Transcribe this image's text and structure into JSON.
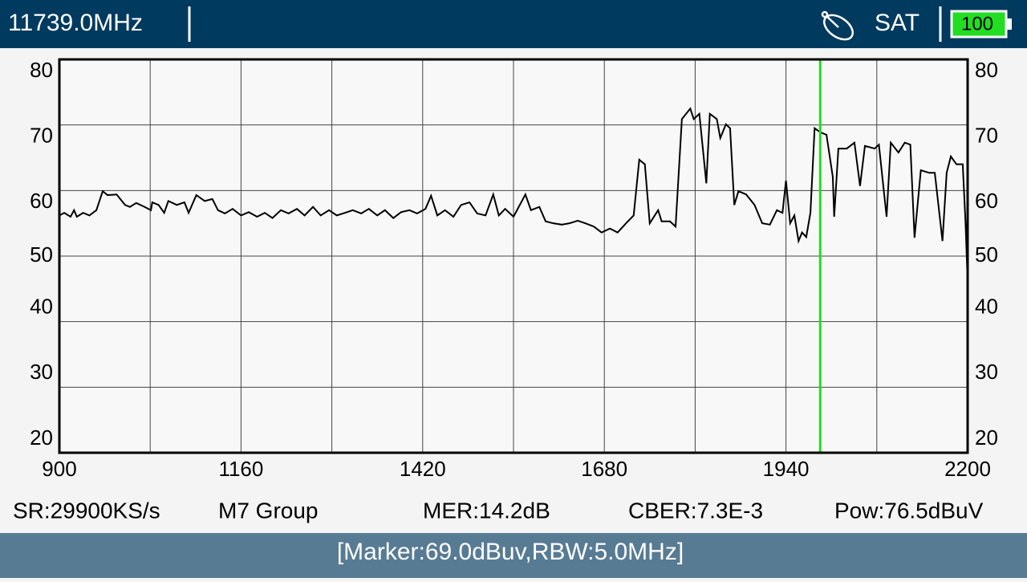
{
  "header": {
    "frequency": "11739.0MHz",
    "mode": "SAT",
    "battery": "100"
  },
  "chart_data": {
    "type": "line",
    "xlim": [
      900,
      2200
    ],
    "xticks": [
      900,
      1160,
      1420,
      1680,
      1940,
      2200
    ],
    "x_minor_ticks": [
      1030,
      1290,
      1550,
      1810,
      2070
    ],
    "ylim": [
      20,
      80
    ],
    "yticks": [
      20,
      30,
      40,
      50,
      60,
      70,
      80
    ],
    "grid": true,
    "marker": {
      "x": 1989,
      "color": "#22dd22"
    },
    "series": [
      {
        "color": "#000000",
        "x": [
          900,
          907,
          916,
          921,
          925,
          934,
          943,
          953,
          962,
          969,
          982,
          994,
          1001,
          1010,
          1022,
          1031,
          1033,
          1042,
          1050,
          1056,
          1068,
          1079,
          1085,
          1096,
          1108,
          1119,
          1127,
          1137,
          1148,
          1160,
          1171,
          1183,
          1194,
          1205,
          1217,
          1228,
          1240,
          1251,
          1263,
          1274,
          1286,
          1297,
          1309,
          1320,
          1332,
          1343,
          1355,
          1366,
          1378,
          1389,
          1401,
          1412,
          1424,
          1432,
          1441,
          1452,
          1464,
          1475,
          1487,
          1498,
          1510,
          1521,
          1529,
          1538,
          1550,
          1561,
          1567,
          1575,
          1587,
          1596,
          1607,
          1619,
          1630,
          1642,
          1653,
          1665,
          1676,
          1688,
          1699,
          1711,
          1722,
          1730,
          1738,
          1745,
          1757,
          1762,
          1774,
          1782,
          1791,
          1803,
          1808,
          1816,
          1826,
          1831,
          1841,
          1846,
          1854,
          1860,
          1866,
          1872,
          1883,
          1895,
          1906,
          1917,
          1927,
          1935,
          1940,
          1946,
          1952,
          1958,
          1963,
          1969,
          1975,
          1981,
          1989,
          1998,
          2007,
          2009,
          2015,
          2027,
          2038,
          2046,
          2053,
          2067,
          2073,
          2084,
          2090,
          2101,
          2110,
          2118,
          2124,
          2133,
          2145,
          2153,
          2164,
          2170,
          2176,
          2184,
          2193,
          2197,
          2200
        ],
        "values": [
          56.2,
          56.6,
          56.0,
          57.0,
          56.0,
          56.6,
          56.2,
          57.0,
          59.9,
          59.3,
          59.4,
          57.8,
          57.5,
          58.1,
          57.5,
          57.0,
          58.2,
          57.8,
          56.6,
          58.4,
          57.8,
          58.2,
          56.6,
          59.3,
          58.4,
          58.7,
          57.0,
          56.5,
          57.2,
          56.2,
          56.7,
          56.0,
          56.6,
          55.8,
          57.0,
          56.5,
          57.2,
          56.2,
          57.5,
          56.2,
          57.0,
          56.2,
          56.6,
          57.0,
          56.5,
          57.2,
          56.2,
          57.0,
          55.8,
          56.7,
          57.0,
          56.5,
          57.2,
          59.2,
          56.2,
          57.0,
          56.0,
          57.8,
          58.2,
          56.5,
          56.2,
          59.4,
          56.2,
          57.2,
          56.0,
          58.2,
          59.4,
          57.0,
          57.5,
          55.3,
          55.0,
          54.8,
          55.0,
          55.4,
          55.0,
          54.5,
          53.6,
          54.2,
          53.6,
          55.0,
          56.2,
          64.7,
          64.0,
          55.0,
          57.0,
          55.3,
          55.3,
          54.5,
          70.9,
          72.5,
          70.9,
          71.7,
          61.1,
          71.7,
          70.9,
          68.0,
          70.1,
          69.5,
          57.8,
          59.9,
          59.4,
          57.8,
          55.0,
          54.8,
          57.0,
          56.6,
          61.5,
          55.0,
          56.2,
          52.3,
          53.6,
          52.9,
          56.6,
          69.5,
          68.9,
          68.5,
          62.1,
          56.0,
          66.4,
          66.4,
          67.3,
          60.7,
          66.8,
          66.4,
          67.0,
          56.0,
          67.3,
          65.8,
          67.3,
          67.0,
          52.8,
          63.1,
          62.7,
          62.7,
          52.3,
          62.7,
          65.2,
          64.0,
          64.0,
          55.0,
          46.2
        ]
      }
    ]
  },
  "info": [
    "SR:29900KS/s",
    "M7 Group",
    "MER:14.2dB",
    "CBER:7.3E-3",
    "Pow:76.5dBuV"
  ],
  "status": "[Marker:69.0dBuv,RBW:5.0MHz]"
}
